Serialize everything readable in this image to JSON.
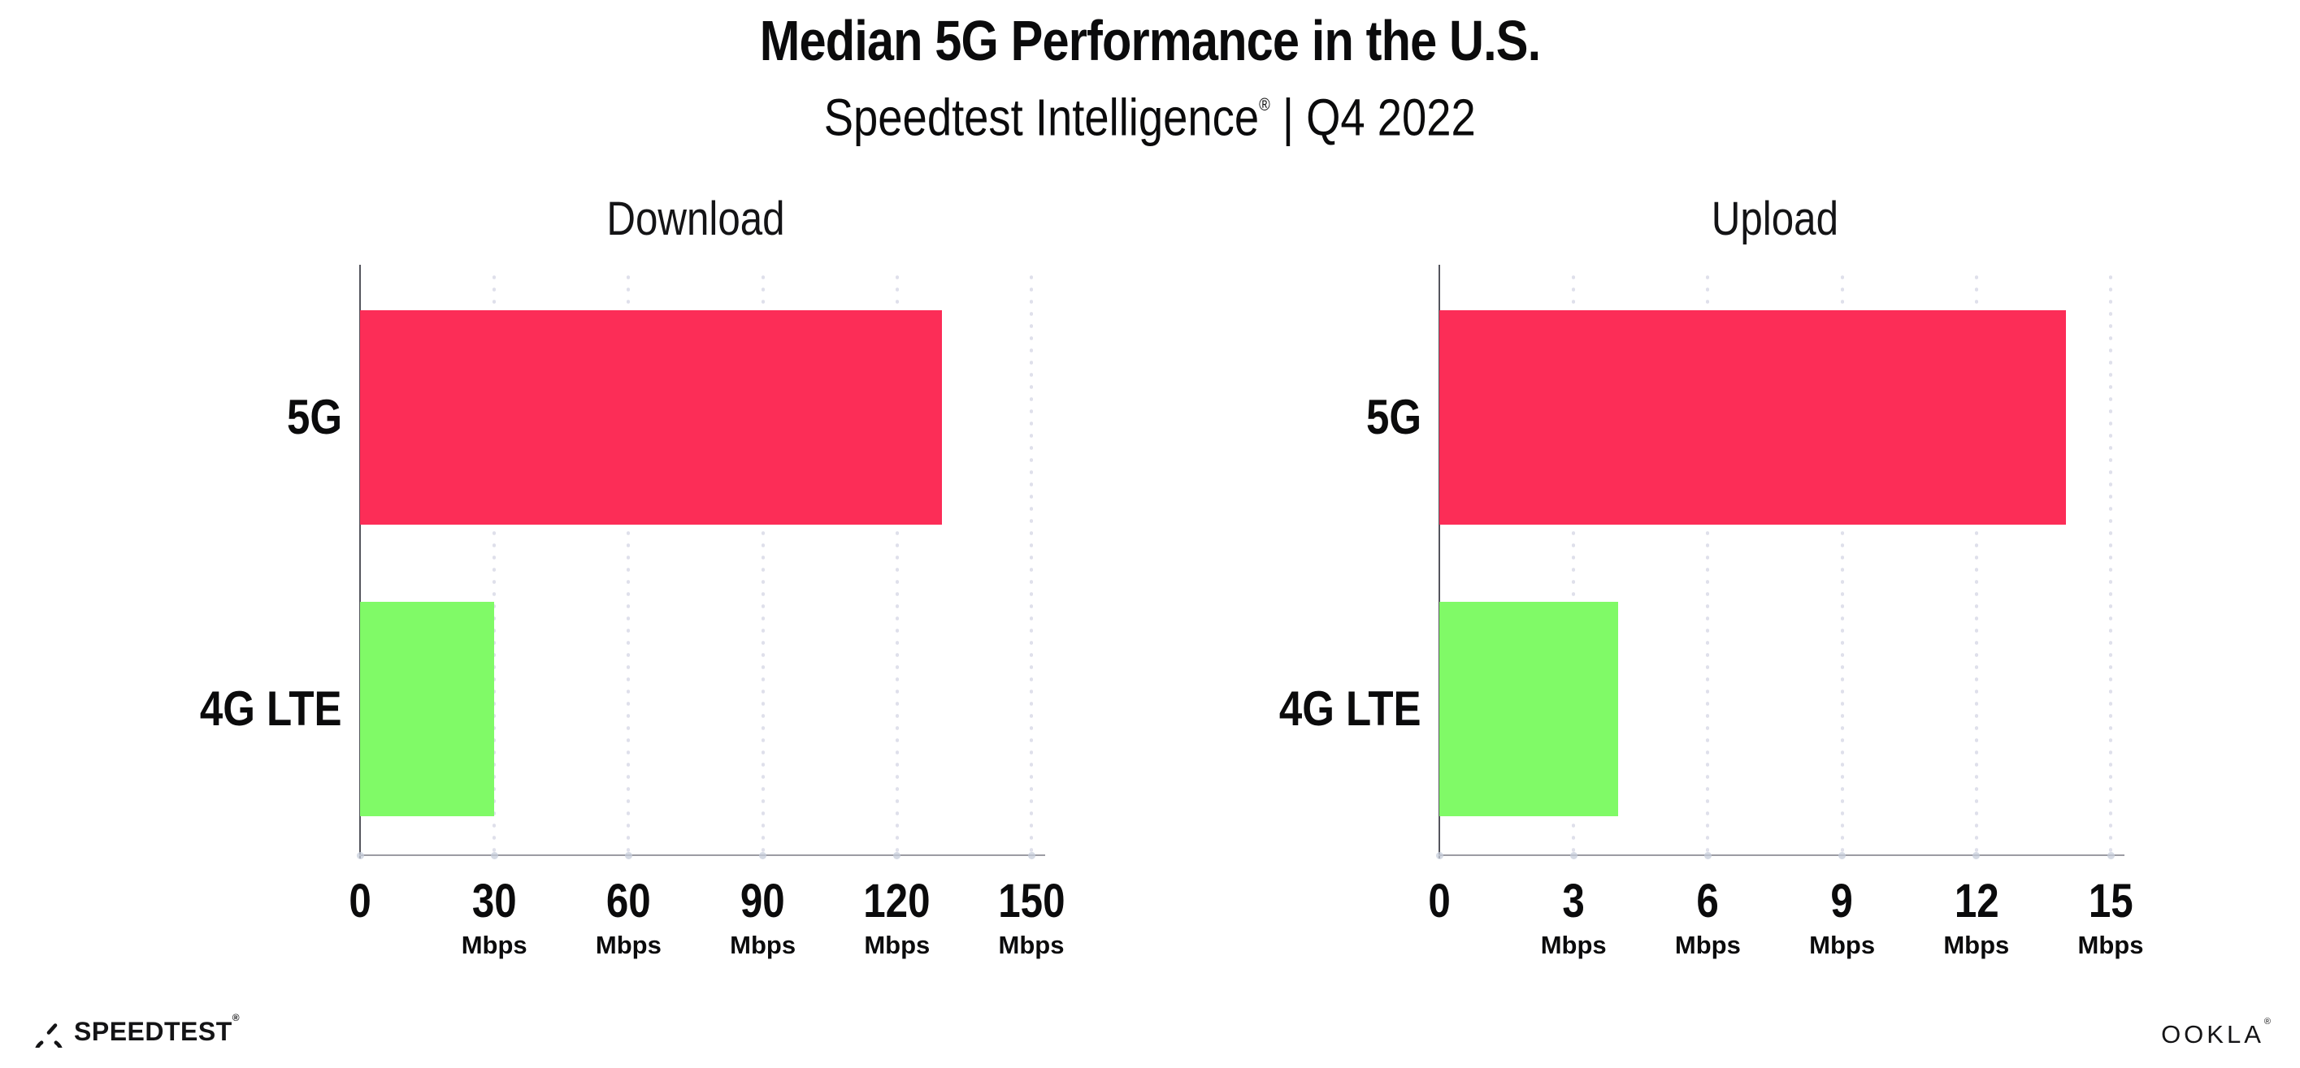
{
  "header": {
    "title": "Median 5G Performance in the U.S.",
    "subtitle_brand": "Speedtest Intelligence",
    "subtitle_reg": "®",
    "subtitle_rest": " | Q4 2022"
  },
  "colors": {
    "bar_5g": "#FC2D57",
    "bar_4g_lte": "#80FA67",
    "gridline": "#DFE0EB",
    "x_axis": "#9B9BA3",
    "y_axis": "#54555D",
    "text": "#0B0B0C"
  },
  "chart_data": [
    {
      "type": "bar",
      "orientation": "horizontal",
      "title": "Download",
      "categories": [
        "5G",
        "4G LTE"
      ],
      "values": [
        130,
        30
      ],
      "value_unit": "Mbps",
      "xlim": [
        0,
        150
      ],
      "xticks": [
        0,
        30,
        60,
        90,
        120,
        150
      ],
      "xtick_unit_label": "Mbps",
      "grid": "dotted-vertical",
      "legend": "none",
      "bar_colors": [
        "#FC2D57",
        "#80FA67"
      ]
    },
    {
      "type": "bar",
      "orientation": "horizontal",
      "title": "Upload",
      "categories": [
        "5G",
        "4G LTE"
      ],
      "values": [
        14,
        4
      ],
      "value_unit": "Mbps",
      "xlim": [
        0,
        15
      ],
      "xticks": [
        0,
        3,
        6,
        9,
        12,
        15
      ],
      "xtick_unit_label": "Mbps",
      "grid": "dotted-vertical",
      "legend": "none",
      "bar_colors": [
        "#FC2D57",
        "#80FA67"
      ]
    }
  ],
  "footer": {
    "speedtest_label": "SPEEDTEST",
    "speedtest_reg": "®",
    "speedtest_icon": "speedtest-gauge-icon",
    "ookla_label": "OOKLA",
    "ookla_reg": "®"
  }
}
